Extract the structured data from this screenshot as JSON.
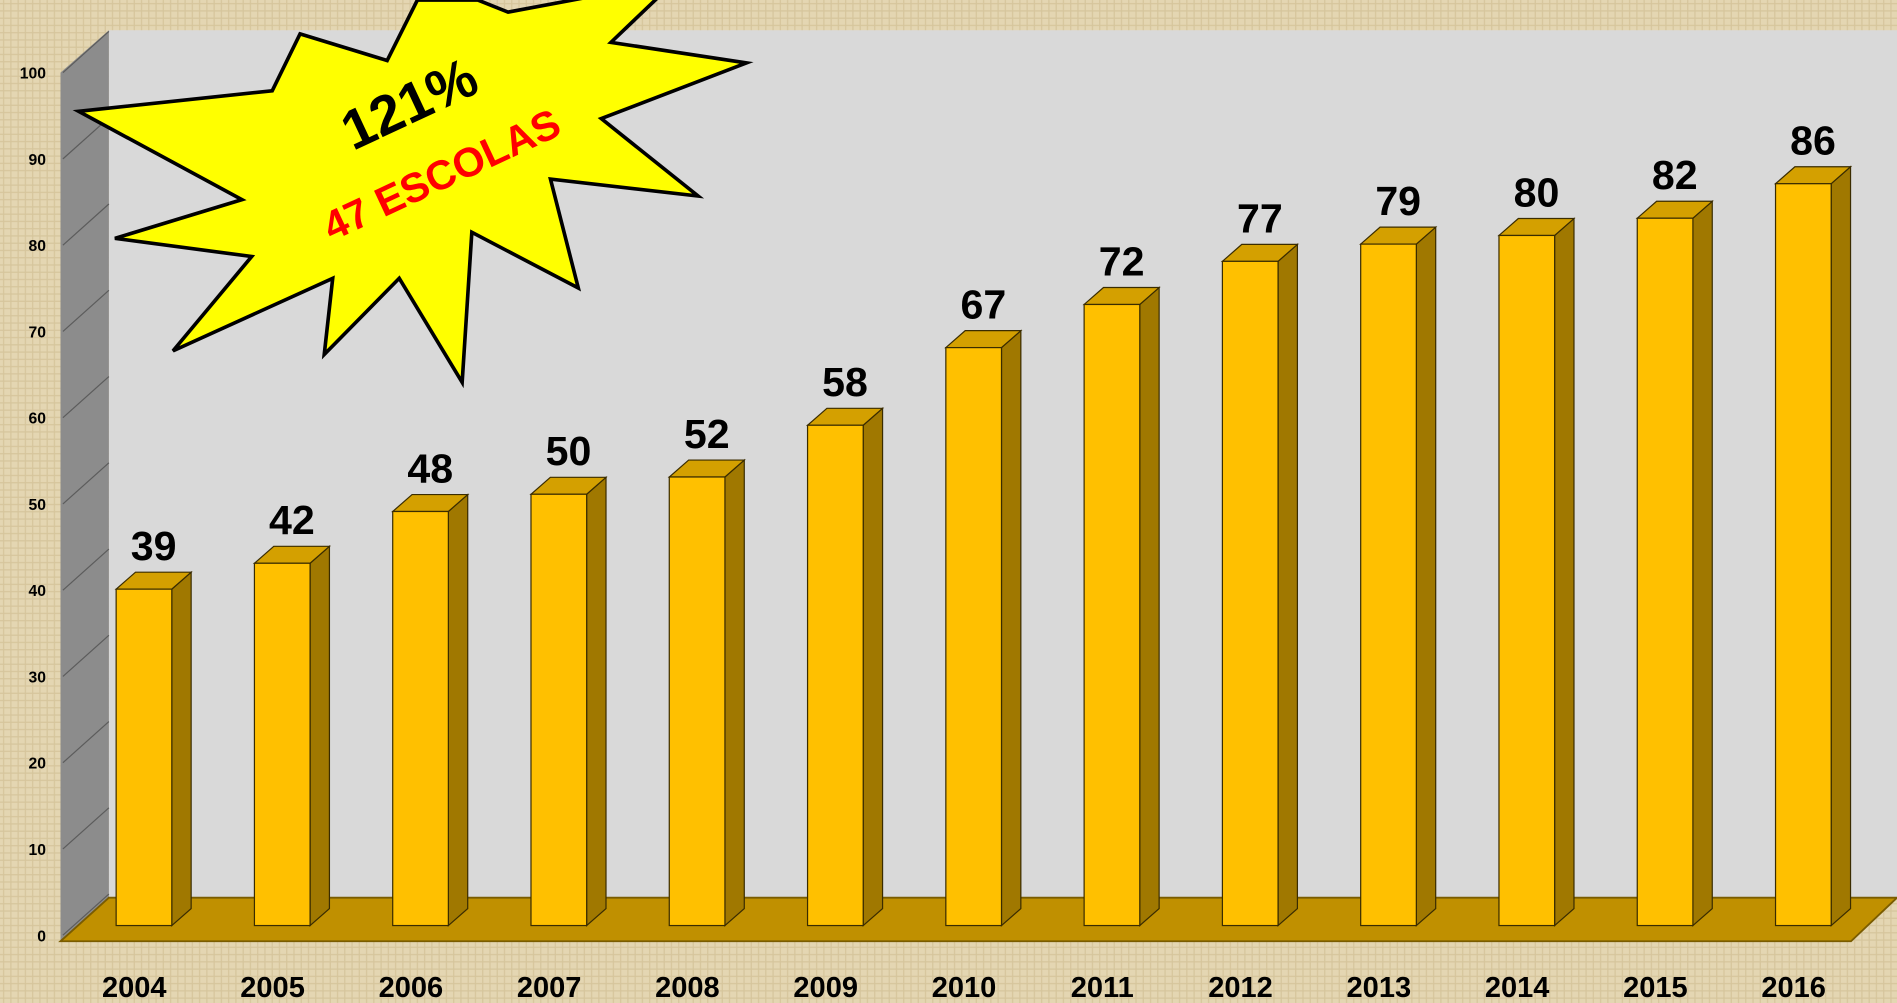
{
  "chart_data": {
    "type": "bar",
    "categories": [
      "2004",
      "2005",
      "2006",
      "2007",
      "2008",
      "2009",
      "2010",
      "2011",
      "2012",
      "2013",
      "2014",
      "2015",
      "2016"
    ],
    "values": [
      39,
      42,
      48,
      50,
      52,
      58,
      67,
      72,
      77,
      79,
      80,
      82,
      86
    ],
    "color": "#ffc000",
    "ylim": [
      0,
      100
    ],
    "yticks": [
      0,
      10,
      20,
      30,
      40,
      50,
      60,
      70,
      80,
      90,
      100
    ],
    "annotations": [
      "121%",
      "47 ESCOLAS"
    ]
  }
}
